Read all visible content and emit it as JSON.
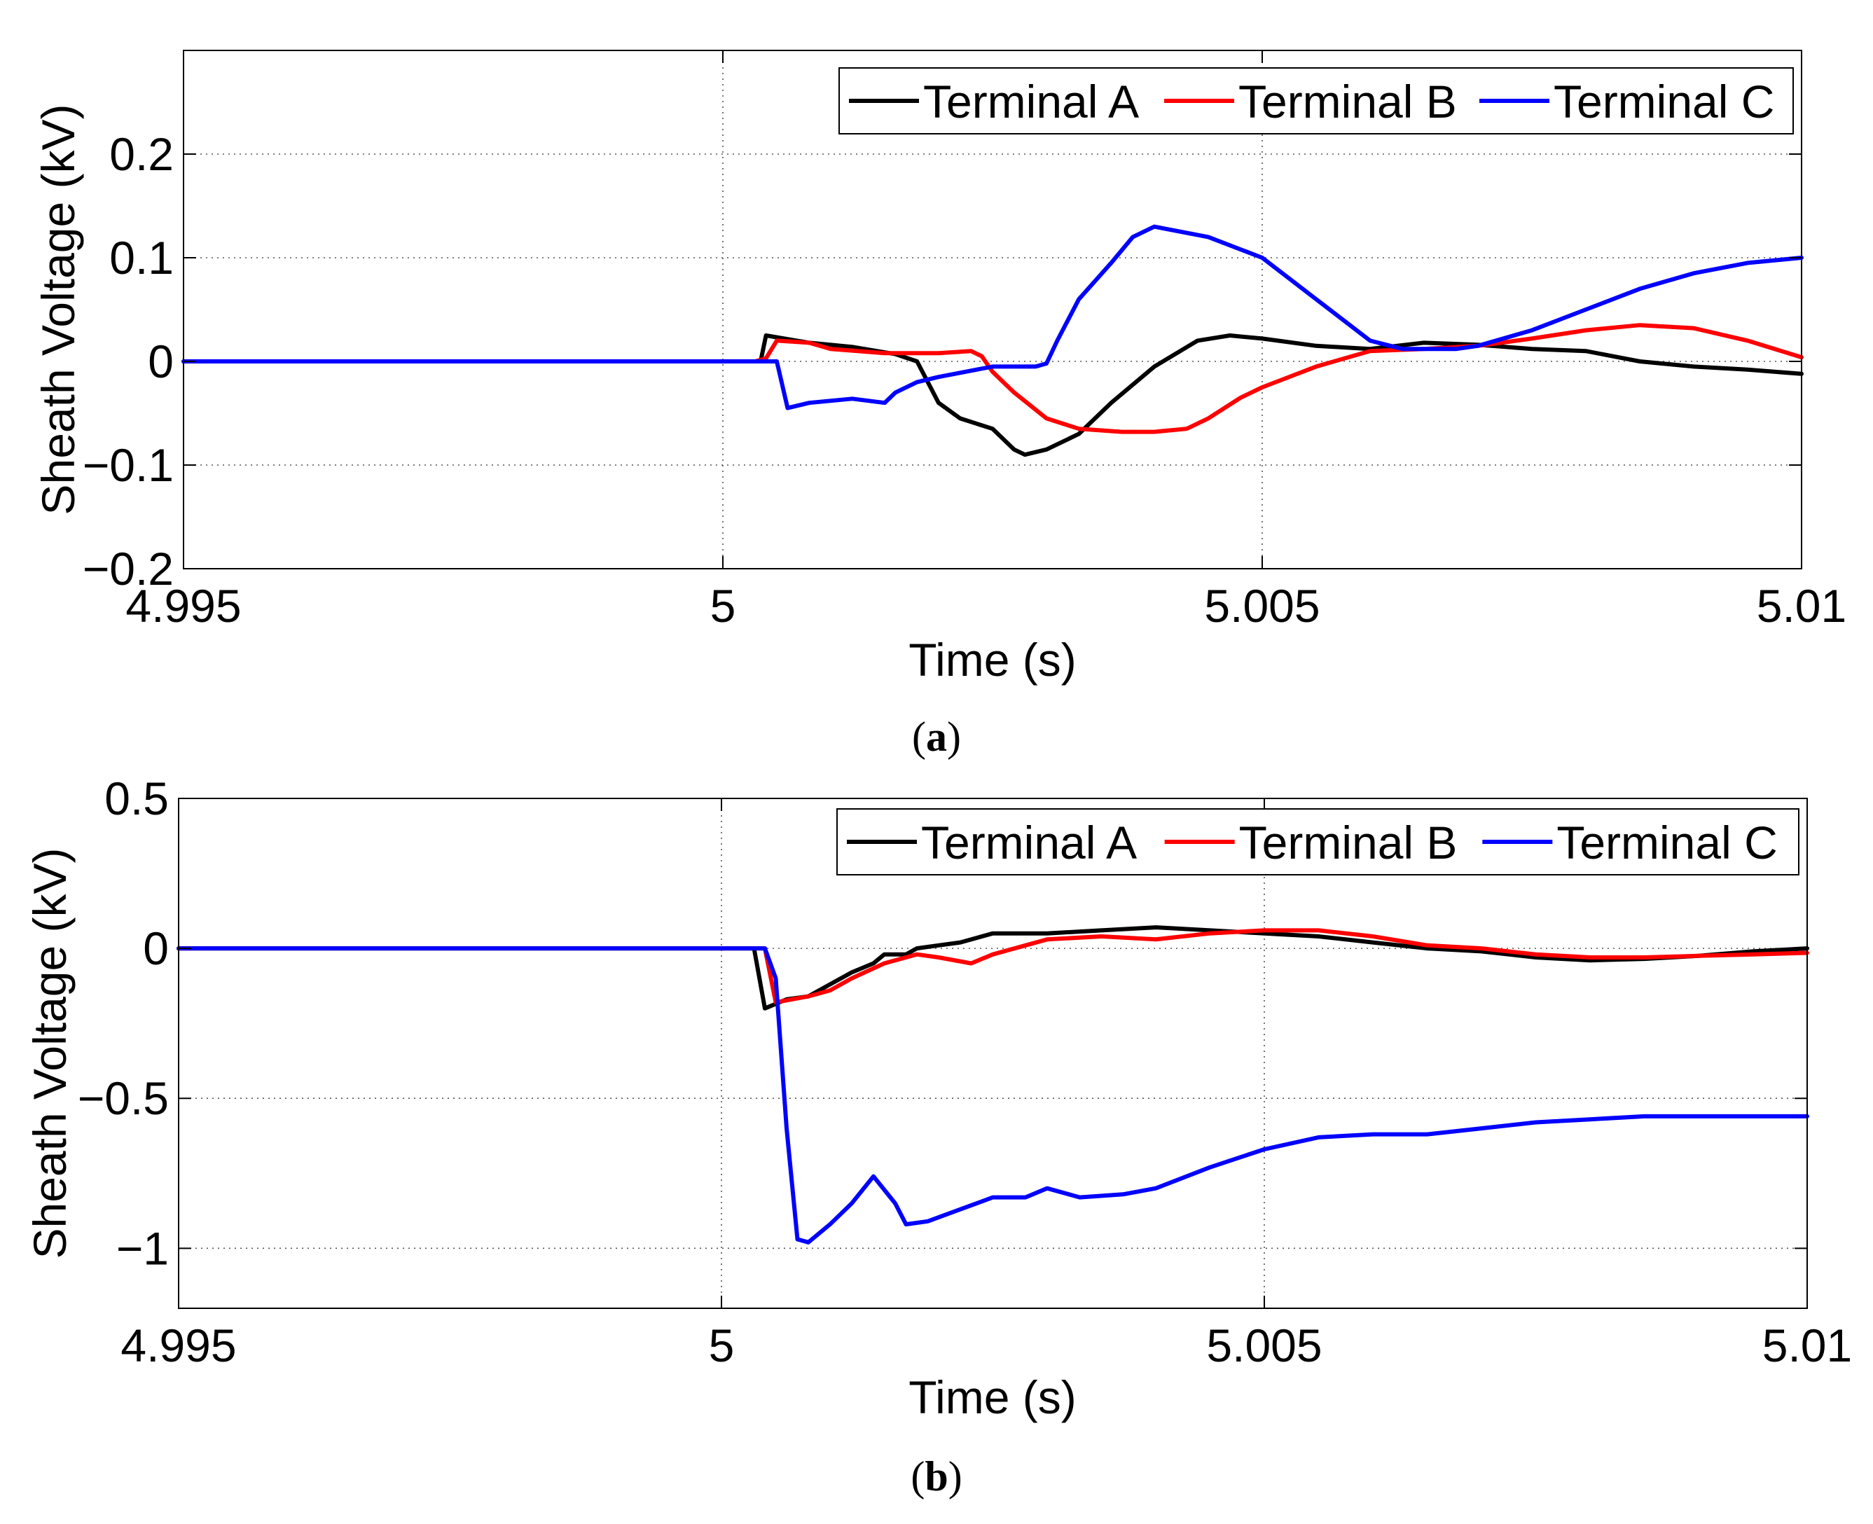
{
  "chart_data": [
    {
      "id": "a",
      "type": "line",
      "caption_letter": "a",
      "xlabel": "Time (s)",
      "ylabel": "Sheath Voltage (kV)",
      "xlim": [
        4.995,
        5.01
      ],
      "ylim": [
        -0.2,
        0.3
      ],
      "xticks": [
        4.995,
        5,
        5.005,
        5.01
      ],
      "xtick_labels": [
        "4.995",
        "5",
        "5.005",
        "5.01"
      ],
      "yticks": [
        -0.2,
        -0.1,
        0,
        0.1,
        0.2
      ],
      "ytick_labels": [
        "−0.2",
        "−0.1",
        "0",
        "0.1",
        "0.2"
      ],
      "grid": true,
      "legend_position": "top-right",
      "series": [
        {
          "name": "Terminal A",
          "color": "#000000",
          "points": [
            [
              4.995,
              0
            ],
            [
              4.998,
              0
            ],
            [
              5.0,
              0
            ],
            [
              5.00035,
              0.0
            ],
            [
              5.0004,
              0.025
            ],
            [
              5.0008,
              0.018
            ],
            [
              5.0012,
              0.014
            ],
            [
              5.0016,
              0.007
            ],
            [
              5.0018,
              0.0
            ],
            [
              5.0019,
              -0.02
            ],
            [
              5.002,
              -0.04
            ],
            [
              5.0022,
              -0.055
            ],
            [
              5.0025,
              -0.065
            ],
            [
              5.0027,
              -0.085
            ],
            [
              5.0028,
              -0.09
            ],
            [
              5.003,
              -0.085
            ],
            [
              5.0033,
              -0.07
            ],
            [
              5.0036,
              -0.04
            ],
            [
              5.004,
              -0.005
            ],
            [
              5.0044,
              0.02
            ],
            [
              5.0047,
              0.025
            ],
            [
              5.005,
              0.022
            ],
            [
              5.0055,
              0.015
            ],
            [
              5.006,
              0.012
            ],
            [
              5.0065,
              0.018
            ],
            [
              5.007,
              0.016
            ],
            [
              5.0075,
              0.012
            ],
            [
              5.008,
              0.01
            ],
            [
              5.0085,
              0.0
            ],
            [
              5.009,
              -0.005
            ],
            [
              5.0095,
              -0.008
            ],
            [
              5.01,
              -0.012
            ]
          ]
        },
        {
          "name": "Terminal B",
          "color": "#ff0000",
          "points": [
            [
              4.995,
              0
            ],
            [
              4.998,
              0
            ],
            [
              5.0,
              0
            ],
            [
              5.0003,
              0.0
            ],
            [
              5.0004,
              0.003
            ],
            [
              5.0005,
              0.02
            ],
            [
              5.0008,
              0.018
            ],
            [
              5.001,
              0.012
            ],
            [
              5.0015,
              0.008
            ],
            [
              5.002,
              0.008
            ],
            [
              5.0023,
              0.01
            ],
            [
              5.0024,
              0.005
            ],
            [
              5.0025,
              -0.01
            ],
            [
              5.0027,
              -0.03
            ],
            [
              5.003,
              -0.055
            ],
            [
              5.0033,
              -0.065
            ],
            [
              5.0037,
              -0.068
            ],
            [
              5.004,
              -0.068
            ],
            [
              5.0043,
              -0.065
            ],
            [
              5.0045,
              -0.055
            ],
            [
              5.0048,
              -0.035
            ],
            [
              5.005,
              -0.025
            ],
            [
              5.0055,
              -0.005
            ],
            [
              5.006,
              0.01
            ],
            [
              5.0065,
              0.012
            ],
            [
              5.007,
              0.015
            ],
            [
              5.0075,
              0.022
            ],
            [
              5.008,
              0.03
            ],
            [
              5.0085,
              0.035
            ],
            [
              5.009,
              0.032
            ],
            [
              5.0095,
              0.02
            ],
            [
              5.01,
              0.004
            ]
          ]
        },
        {
          "name": "Terminal C",
          "color": "#0000ff",
          "points": [
            [
              4.995,
              0
            ],
            [
              4.998,
              0
            ],
            [
              5.0,
              0
            ],
            [
              5.0005,
              0.0
            ],
            [
              5.0006,
              -0.045
            ],
            [
              5.0008,
              -0.04
            ],
            [
              5.0012,
              -0.036
            ],
            [
              5.0015,
              -0.04
            ],
            [
              5.0016,
              -0.03
            ],
            [
              5.0018,
              -0.02
            ],
            [
              5.002,
              -0.015
            ],
            [
              5.0025,
              -0.005
            ],
            [
              5.0029,
              -0.005
            ],
            [
              5.003,
              -0.002
            ],
            [
              5.0031,
              0.02
            ],
            [
              5.0033,
              0.06
            ],
            [
              5.0036,
              0.095
            ],
            [
              5.0038,
              0.12
            ],
            [
              5.004,
              0.13
            ],
            [
              5.0045,
              0.12
            ],
            [
              5.005,
              0.1
            ],
            [
              5.0055,
              0.06
            ],
            [
              5.006,
              0.02
            ],
            [
              5.0063,
              0.012
            ],
            [
              5.0068,
              0.012
            ],
            [
              5.007,
              0.015
            ],
            [
              5.0075,
              0.03
            ],
            [
              5.008,
              0.05
            ],
            [
              5.0085,
              0.07
            ],
            [
              5.009,
              0.085
            ],
            [
              5.0095,
              0.095
            ],
            [
              5.01,
              0.1
            ]
          ]
        }
      ]
    },
    {
      "id": "b",
      "type": "line",
      "caption_letter": "b",
      "xlabel": "Time (s)",
      "ylabel": "Sheath Voltage (kV)",
      "xlim": [
        4.995,
        5.01
      ],
      "ylim": [
        -1.2,
        0.5
      ],
      "xticks": [
        4.995,
        5,
        5.005,
        5.01
      ],
      "xtick_labels": [
        "4.995",
        "5",
        "5.005",
        "5.01"
      ],
      "yticks": [
        -1,
        -0.5,
        0,
        0.5
      ],
      "ytick_labels": [
        "−1",
        "−0.5",
        "0",
        "0.5"
      ],
      "grid": true,
      "legend_position": "top-right",
      "series": [
        {
          "name": "Terminal A",
          "color": "#000000",
          "points": [
            [
              4.995,
              0
            ],
            [
              4.998,
              0
            ],
            [
              5.0,
              0
            ],
            [
              5.0003,
              0
            ],
            [
              5.0004,
              -0.2
            ],
            [
              5.0006,
              -0.17
            ],
            [
              5.0008,
              -0.16
            ],
            [
              5.001,
              -0.12
            ],
            [
              5.0012,
              -0.08
            ],
            [
              5.0014,
              -0.05
            ],
            [
              5.0015,
              -0.02
            ],
            [
              5.0017,
              -0.02
            ],
            [
              5.0018,
              0.0
            ],
            [
              5.002,
              0.01
            ],
            [
              5.0022,
              0.02
            ],
            [
              5.0025,
              0.05
            ],
            [
              5.003,
              0.05
            ],
            [
              5.0035,
              0.06
            ],
            [
              5.004,
              0.07
            ],
            [
              5.0045,
              0.06
            ],
            [
              5.005,
              0.05
            ],
            [
              5.0055,
              0.04
            ],
            [
              5.006,
              0.02
            ],
            [
              5.0065,
              0.0
            ],
            [
              5.007,
              -0.01
            ],
            [
              5.0075,
              -0.03
            ],
            [
              5.008,
              -0.04
            ],
            [
              5.0085,
              -0.035
            ],
            [
              5.009,
              -0.025
            ],
            [
              5.0095,
              -0.01
            ],
            [
              5.01,
              0.0
            ]
          ]
        },
        {
          "name": "Terminal B",
          "color": "#ff0000",
          "points": [
            [
              4.995,
              0
            ],
            [
              4.998,
              0
            ],
            [
              5.0,
              0
            ],
            [
              5.0004,
              0
            ],
            [
              5.0005,
              -0.18
            ],
            [
              5.0008,
              -0.16
            ],
            [
              5.001,
              -0.14
            ],
            [
              5.0012,
              -0.1
            ],
            [
              5.0015,
              -0.05
            ],
            [
              5.0018,
              -0.02
            ],
            [
              5.002,
              -0.03
            ],
            [
              5.0023,
              -0.05
            ],
            [
              5.0025,
              -0.02
            ],
            [
              5.003,
              0.03
            ],
            [
              5.0035,
              0.04
            ],
            [
              5.004,
              0.03
            ],
            [
              5.0045,
              0.05
            ],
            [
              5.005,
              0.06
            ],
            [
              5.0055,
              0.06
            ],
            [
              5.006,
              0.04
            ],
            [
              5.0065,
              0.01
            ],
            [
              5.007,
              0.0
            ],
            [
              5.0075,
              -0.02
            ],
            [
              5.008,
              -0.03
            ],
            [
              5.0085,
              -0.03
            ],
            [
              5.009,
              -0.025
            ],
            [
              5.0095,
              -0.02
            ],
            [
              5.01,
              -0.015
            ]
          ]
        },
        {
          "name": "Terminal C",
          "color": "#0000ff",
          "points": [
            [
              4.995,
              0
            ],
            [
              4.998,
              0
            ],
            [
              5.0,
              0
            ],
            [
              5.0004,
              0
            ],
            [
              5.0005,
              -0.1
            ],
            [
              5.0006,
              -0.6
            ],
            [
              5.0007,
              -0.97
            ],
            [
              5.0008,
              -0.98
            ],
            [
              5.001,
              -0.92
            ],
            [
              5.0012,
              -0.85
            ],
            [
              5.0014,
              -0.76
            ],
            [
              5.0016,
              -0.85
            ],
            [
              5.0017,
              -0.92
            ],
            [
              5.0019,
              -0.91
            ],
            [
              5.0022,
              -0.87
            ],
            [
              5.0025,
              -0.83
            ],
            [
              5.0028,
              -0.83
            ],
            [
              5.003,
              -0.8
            ],
            [
              5.0033,
              -0.83
            ],
            [
              5.0037,
              -0.82
            ],
            [
              5.004,
              -0.8
            ],
            [
              5.0045,
              -0.73
            ],
            [
              5.005,
              -0.67
            ],
            [
              5.0055,
              -0.63
            ],
            [
              5.006,
              -0.62
            ],
            [
              5.0065,
              -0.62
            ],
            [
              5.007,
              -0.6
            ],
            [
              5.0075,
              -0.58
            ],
            [
              5.008,
              -0.57
            ],
            [
              5.0085,
              -0.56
            ],
            [
              5.009,
              -0.56
            ],
            [
              5.0095,
              -0.56
            ],
            [
              5.01,
              -0.56
            ]
          ]
        }
      ]
    }
  ]
}
